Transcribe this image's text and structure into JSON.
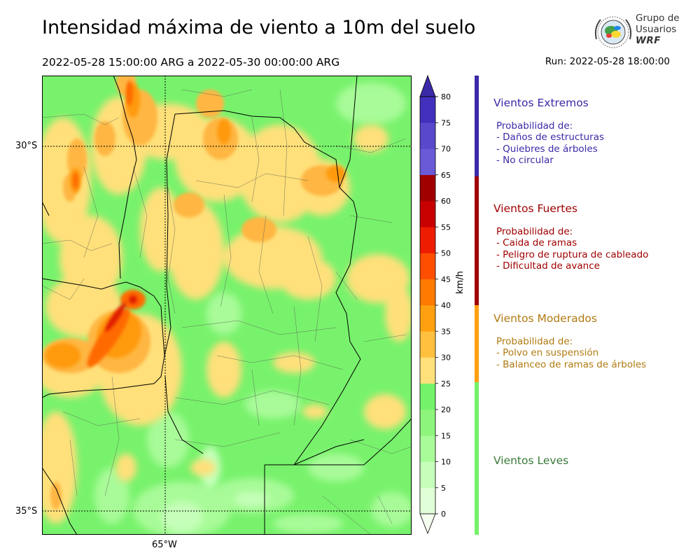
{
  "header": {
    "title": "Intensidad máxima de viento a 10m del suelo",
    "period": "2022-05-28 15:00:00 ARG  a  2022-05-30 00:00:00 ARG",
    "run": "Run: 2022-05-28 18:00:00"
  },
  "logo": {
    "line1": "Grupo de",
    "line2": "Usuarios",
    "line3": "WRF"
  },
  "map": {
    "lat_labels": [
      "30°S",
      "35°S"
    ],
    "lon_labels": [
      "65°W"
    ]
  },
  "colorbar": {
    "unit": "km/h",
    "ticks": [
      "0",
      "5",
      "10",
      "15",
      "20",
      "25",
      "30",
      "35",
      "40",
      "45",
      "50",
      "55",
      "60",
      "65",
      "70",
      "75",
      "80"
    ],
    "colors": [
      "#f5fff0",
      "#e0ffd8",
      "#c6ffba",
      "#a8fb98",
      "#8df47c",
      "#73f26a",
      "#ffe07a",
      "#ffc040",
      "#ffa010",
      "#ff7a00",
      "#ff4e00",
      "#ee1c00",
      "#c80000",
      "#a00000",
      "#6a5ad8",
      "#5a48cc",
      "#4230bc",
      "#3a2aa8"
    ]
  },
  "categories": [
    {
      "title": "Vientos Extremos",
      "color": "#3a2aa8",
      "intro": "Probabilidad de:",
      "items": [
        "- Daños de estructuras",
        "- Quiebres de árboles",
        "- No circular"
      ]
    },
    {
      "title": "Vientos Fuertes",
      "color": "#a00000",
      "intro": "Probabilidad de:",
      "items": [
        "- Caida de ramas",
        "- Peligro de ruptura de cableado",
        "- Dificultad de avance"
      ]
    },
    {
      "title": "Vientos Moderados",
      "color": "#b07a10",
      "intro": "Probabilidad de:",
      "items": [
        "- Polvo en suspensión",
        "- Balanceo de ramas de árboles"
      ]
    },
    {
      "title": "Vientos Leves",
      "color": "#3a7a3a",
      "intro": "",
      "items": []
    }
  ]
}
